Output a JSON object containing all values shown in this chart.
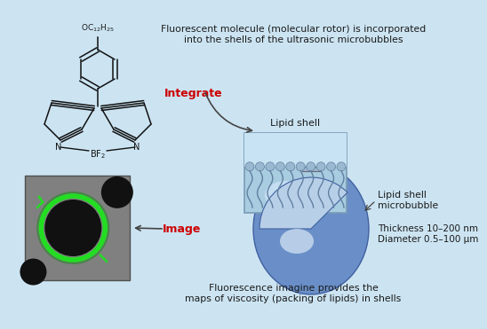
{
  "bg_color": "#cce4f2",
  "text_color": "#1a1a1a",
  "integrate_color": "#cc0000",
  "image_color": "#cc0000",
  "arrow_color": "#444444",
  "title_text1": "Fluorescent molecule (molecular rotor) is incorporated",
  "title_text2": "into the shells of the ultrasonic microbubbles",
  "integrate_label": "Integrate",
  "image_label": "Image",
  "lipid_shell_label": "Lipid shell",
  "lipid_shell_microbubble_label1": "Lipid shell",
  "lipid_shell_microbubble_label2": "microbubble",
  "thickness_label1": "Thickness 10–200 nm",
  "thickness_label2": "Diameter 0.5–100 μm",
  "fluorescence_text1": "Fluorescence imagine provides the",
  "fluorescence_text2": "maps of viscosity (packing of lipids) in shells",
  "chemical_formula_top": "OC$_{12}$H$_{25}$",
  "chemical_label_BF2": "BF$_2$"
}
